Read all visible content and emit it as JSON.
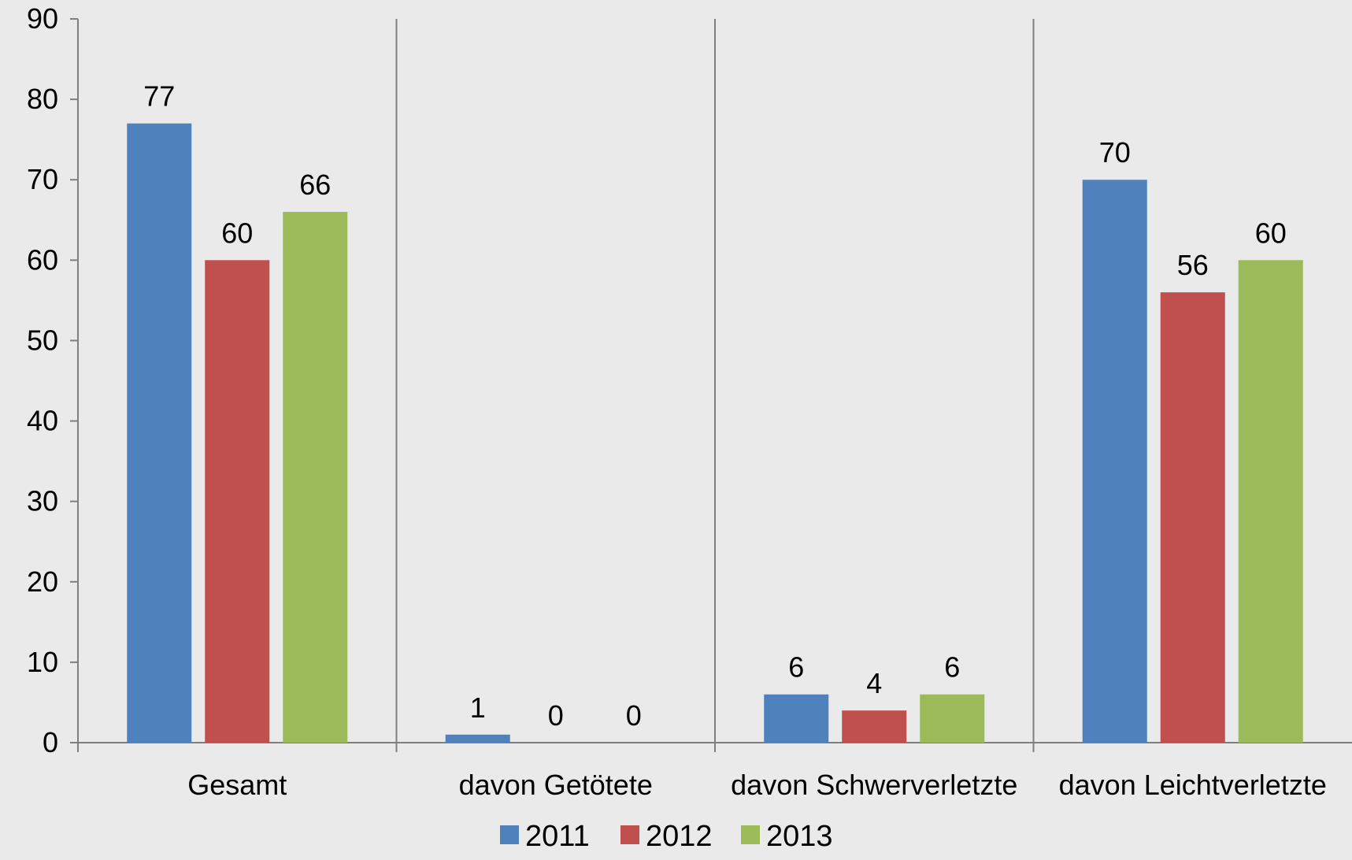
{
  "chart_data": {
    "type": "bar",
    "categories": [
      "Gesamt",
      "davon Getötete",
      "davon Schwerverletzte",
      "davon Leichtverletzte"
    ],
    "series": [
      {
        "name": "2011",
        "color": "#4f81bd",
        "values": [
          77,
          1,
          6,
          70
        ]
      },
      {
        "name": "2012",
        "color": "#c0504d",
        "values": [
          60,
          0,
          4,
          56
        ]
      },
      {
        "name": "2013",
        "color": "#9bbb59",
        "values": [
          66,
          0,
          6,
          60
        ]
      }
    ],
    "ylim": [
      0,
      90
    ],
    "yticks": [
      0,
      10,
      20,
      30,
      40,
      50,
      60,
      70,
      80,
      90
    ],
    "data_labels": true,
    "gridlines": false,
    "category_separators": true,
    "legend_position": "bottom"
  }
}
